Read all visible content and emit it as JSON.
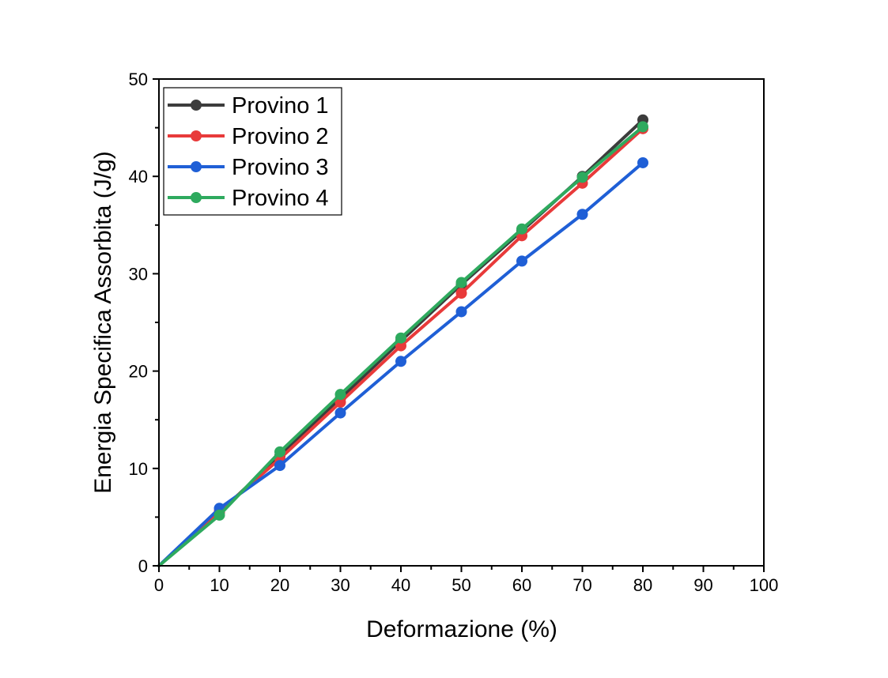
{
  "chart_data": {
    "type": "line",
    "title": "",
    "xlabel": "Deformazione (%)",
    "ylabel": "Energia Specifica Assorbita (J/g)",
    "xlim": [
      0,
      100
    ],
    "ylim": [
      0,
      50
    ],
    "xticks": [
      0,
      10,
      20,
      30,
      40,
      50,
      60,
      70,
      80,
      90,
      100
    ],
    "yticks": [
      0,
      10,
      20,
      30,
      40,
      50
    ],
    "grid": false,
    "legend_position": "top-left",
    "x": [
      0,
      10,
      20,
      30,
      40,
      50,
      60,
      70,
      80
    ],
    "series": [
      {
        "name": "Provino 1",
        "color": "#3c3c3c",
        "values": [
          0,
          5.5,
          11.3,
          17.2,
          23.1,
          28.9,
          34.4,
          40.0,
          45.8
        ]
      },
      {
        "name": "Provino 2",
        "color": "#e83a3a",
        "values": [
          0,
          5.6,
          11.0,
          16.8,
          22.6,
          28.0,
          33.9,
          39.3,
          44.9
        ]
      },
      {
        "name": "Provino 3",
        "color": "#1f5fd6",
        "values": [
          0,
          5.9,
          10.3,
          15.7,
          21.0,
          26.1,
          31.3,
          36.1,
          41.4
        ]
      },
      {
        "name": "Provino 4",
        "color": "#2eaa5e",
        "values": [
          0,
          5.2,
          11.7,
          17.6,
          23.4,
          29.1,
          34.6,
          39.9,
          45.1
        ]
      }
    ]
  }
}
